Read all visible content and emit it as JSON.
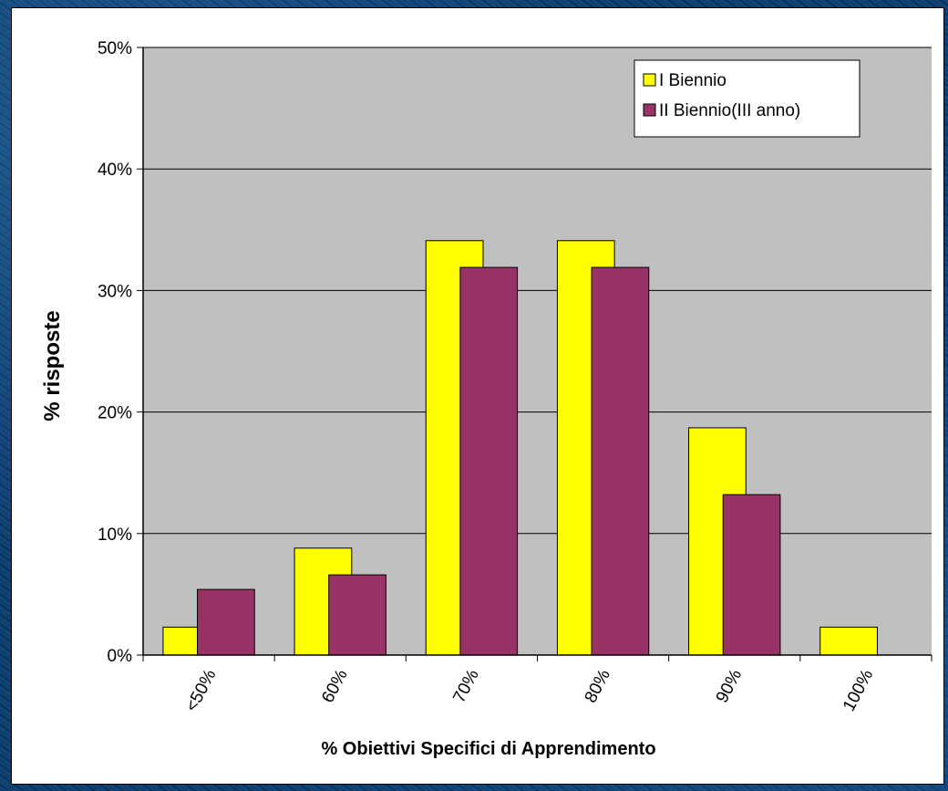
{
  "chart_data": {
    "type": "bar",
    "title": "",
    "xlabel": "% Obiettivi Specifici di Apprendimento",
    "ylabel": "% risposte",
    "categories": [
      "<50%",
      "60%",
      "70%",
      "80%",
      "90%",
      "100%"
    ],
    "series": [
      {
        "name": "I Biennio",
        "color": "#ffff00",
        "values": [
          2.3,
          8.8,
          34.1,
          34.1,
          18.7,
          2.3
        ]
      },
      {
        "name": "II Biennio(III anno)",
        "color": "#993366",
        "values": [
          5.4,
          6.6,
          31.9,
          31.9,
          13.2,
          0
        ]
      }
    ],
    "ylim": [
      0,
      50
    ],
    "yticks": [
      "0%",
      "10%",
      "20%",
      "30%",
      "40%",
      "50%"
    ],
    "grid": true,
    "plot_background": "#c0c0c0",
    "legend_position": "top-right"
  }
}
